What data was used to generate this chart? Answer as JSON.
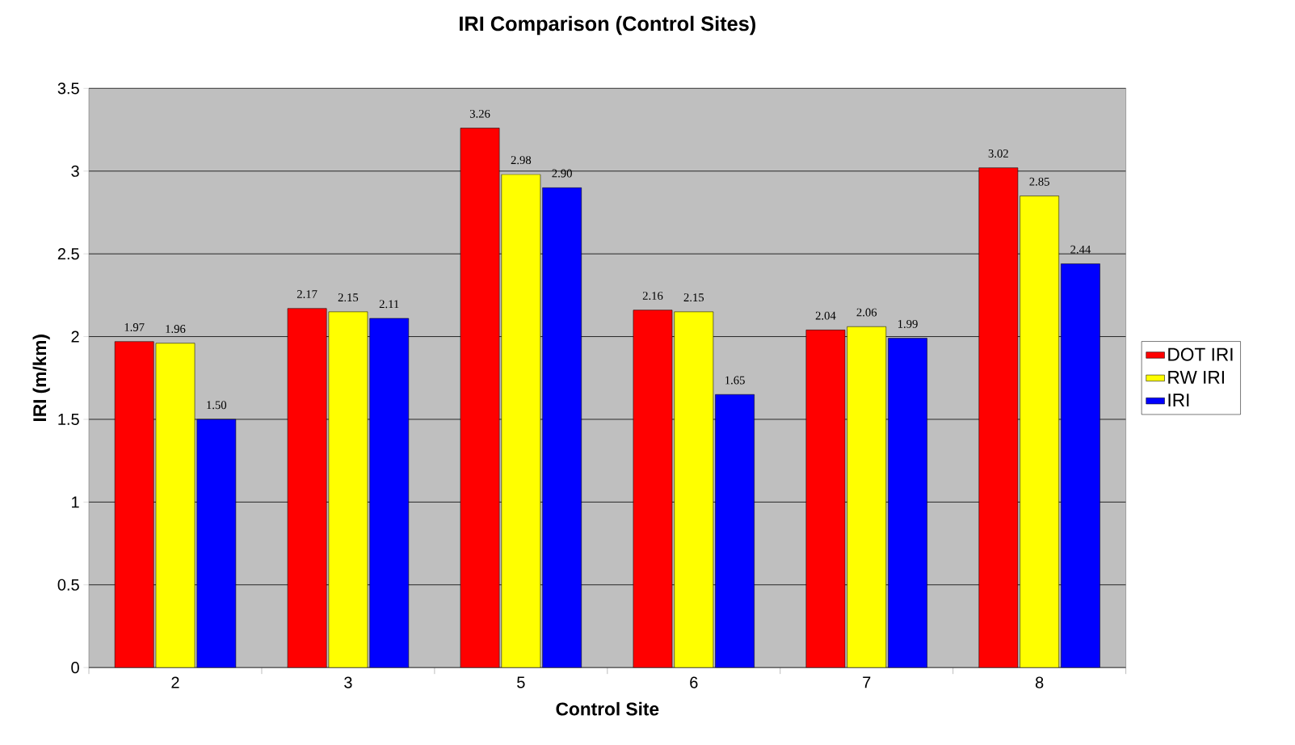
{
  "chart_data": {
    "type": "bar",
    "title": "IRI Comparison (Control Sites)",
    "xlabel": "Control Site",
    "ylabel": "IRI (m/km)",
    "categories": [
      "2",
      "3",
      "5",
      "6",
      "7",
      "8"
    ],
    "series": [
      {
        "name": "DOT IRI",
        "color": "#ff0000",
        "values": [
          1.97,
          2.17,
          3.26,
          2.16,
          2.04,
          3.02
        ],
        "value_labels": [
          "1.97",
          "2.17",
          "3.26",
          "2.16",
          "2.04",
          "3.02"
        ]
      },
      {
        "name": "RW IRI",
        "color": "#ffff00",
        "values": [
          1.96,
          2.15,
          2.98,
          2.15,
          2.06,
          2.85
        ],
        "value_labels": [
          "1.96",
          "2.15",
          "2.98",
          "2.15",
          "2.06",
          "2.85"
        ]
      },
      {
        "name": "IRI",
        "color": "#0000ff",
        "values": [
          1.5,
          2.11,
          2.9,
          1.65,
          1.99,
          2.44
        ],
        "value_labels": [
          "1.50",
          "2.11",
          "2.90",
          "1.65",
          "1.99",
          "2.44"
        ]
      }
    ],
    "ylim": [
      0,
      3.5
    ],
    "yticks": [
      0,
      0.5,
      1,
      1.5,
      2,
      2.5,
      3,
      3.5
    ],
    "grid": "y",
    "legend": "right"
  }
}
